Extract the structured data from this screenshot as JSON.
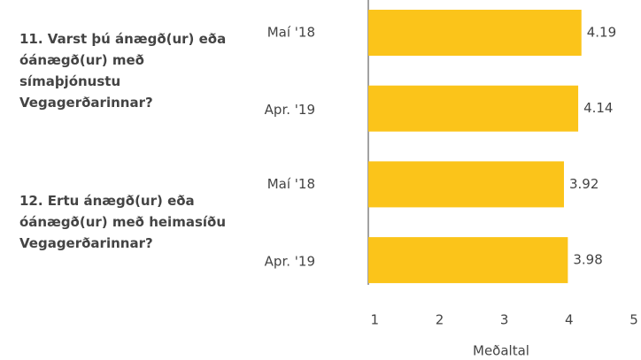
{
  "chart_data": {
    "type": "bar",
    "orientation": "horizontal",
    "groups": [
      {
        "label": "11. Varst þú ánægð(ur) eða óánægð(ur) með símaþjónustu Vegagerðarinnar?",
        "categories": [
          "Maí '18",
          "Apr. '19"
        ],
        "values": [
          4.19,
          4.14
        ]
      },
      {
        "label": "12. Ertu ánægð(ur) eða óánægð(ur) með heimasíðu Vegagerðarinnar?",
        "categories": [
          "Maí '18",
          "Apr. '19"
        ],
        "values": [
          3.92,
          3.98
        ]
      }
    ],
    "color": "#fbc41a",
    "xlim": [
      0.9,
      5
    ],
    "xticks": [
      1,
      2,
      3,
      4,
      5
    ],
    "xlabel": "Meðaltal",
    "grid": false
  }
}
